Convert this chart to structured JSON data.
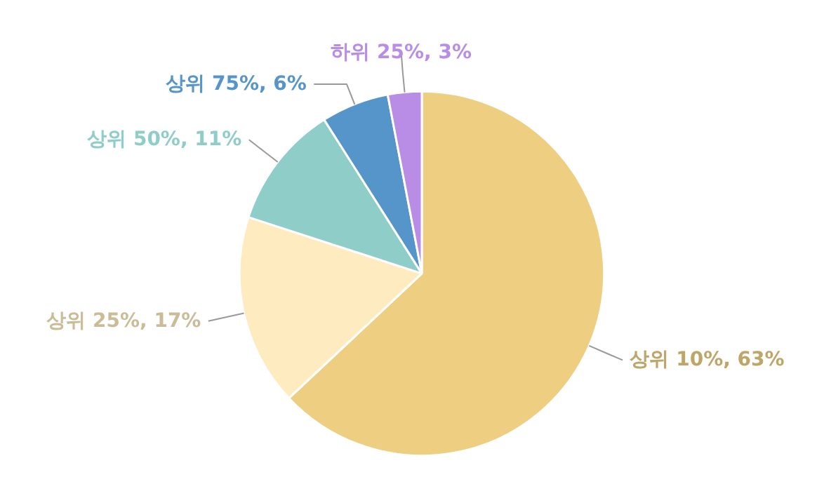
{
  "chart_data": {
    "type": "pie",
    "categories": [
      "상위 10%",
      "상위 25%",
      "상위 50%",
      "상위 75%",
      "하위 25%"
    ],
    "values": [
      63,
      17,
      11,
      6,
      3
    ],
    "value_labels": [
      "63%",
      "17%",
      "11%",
      "6%",
      "3%"
    ],
    "colors": [
      "#eecf82",
      "#feebbf",
      "#8ecdc8",
      "#5695c9",
      "#b98de6"
    ]
  }
}
